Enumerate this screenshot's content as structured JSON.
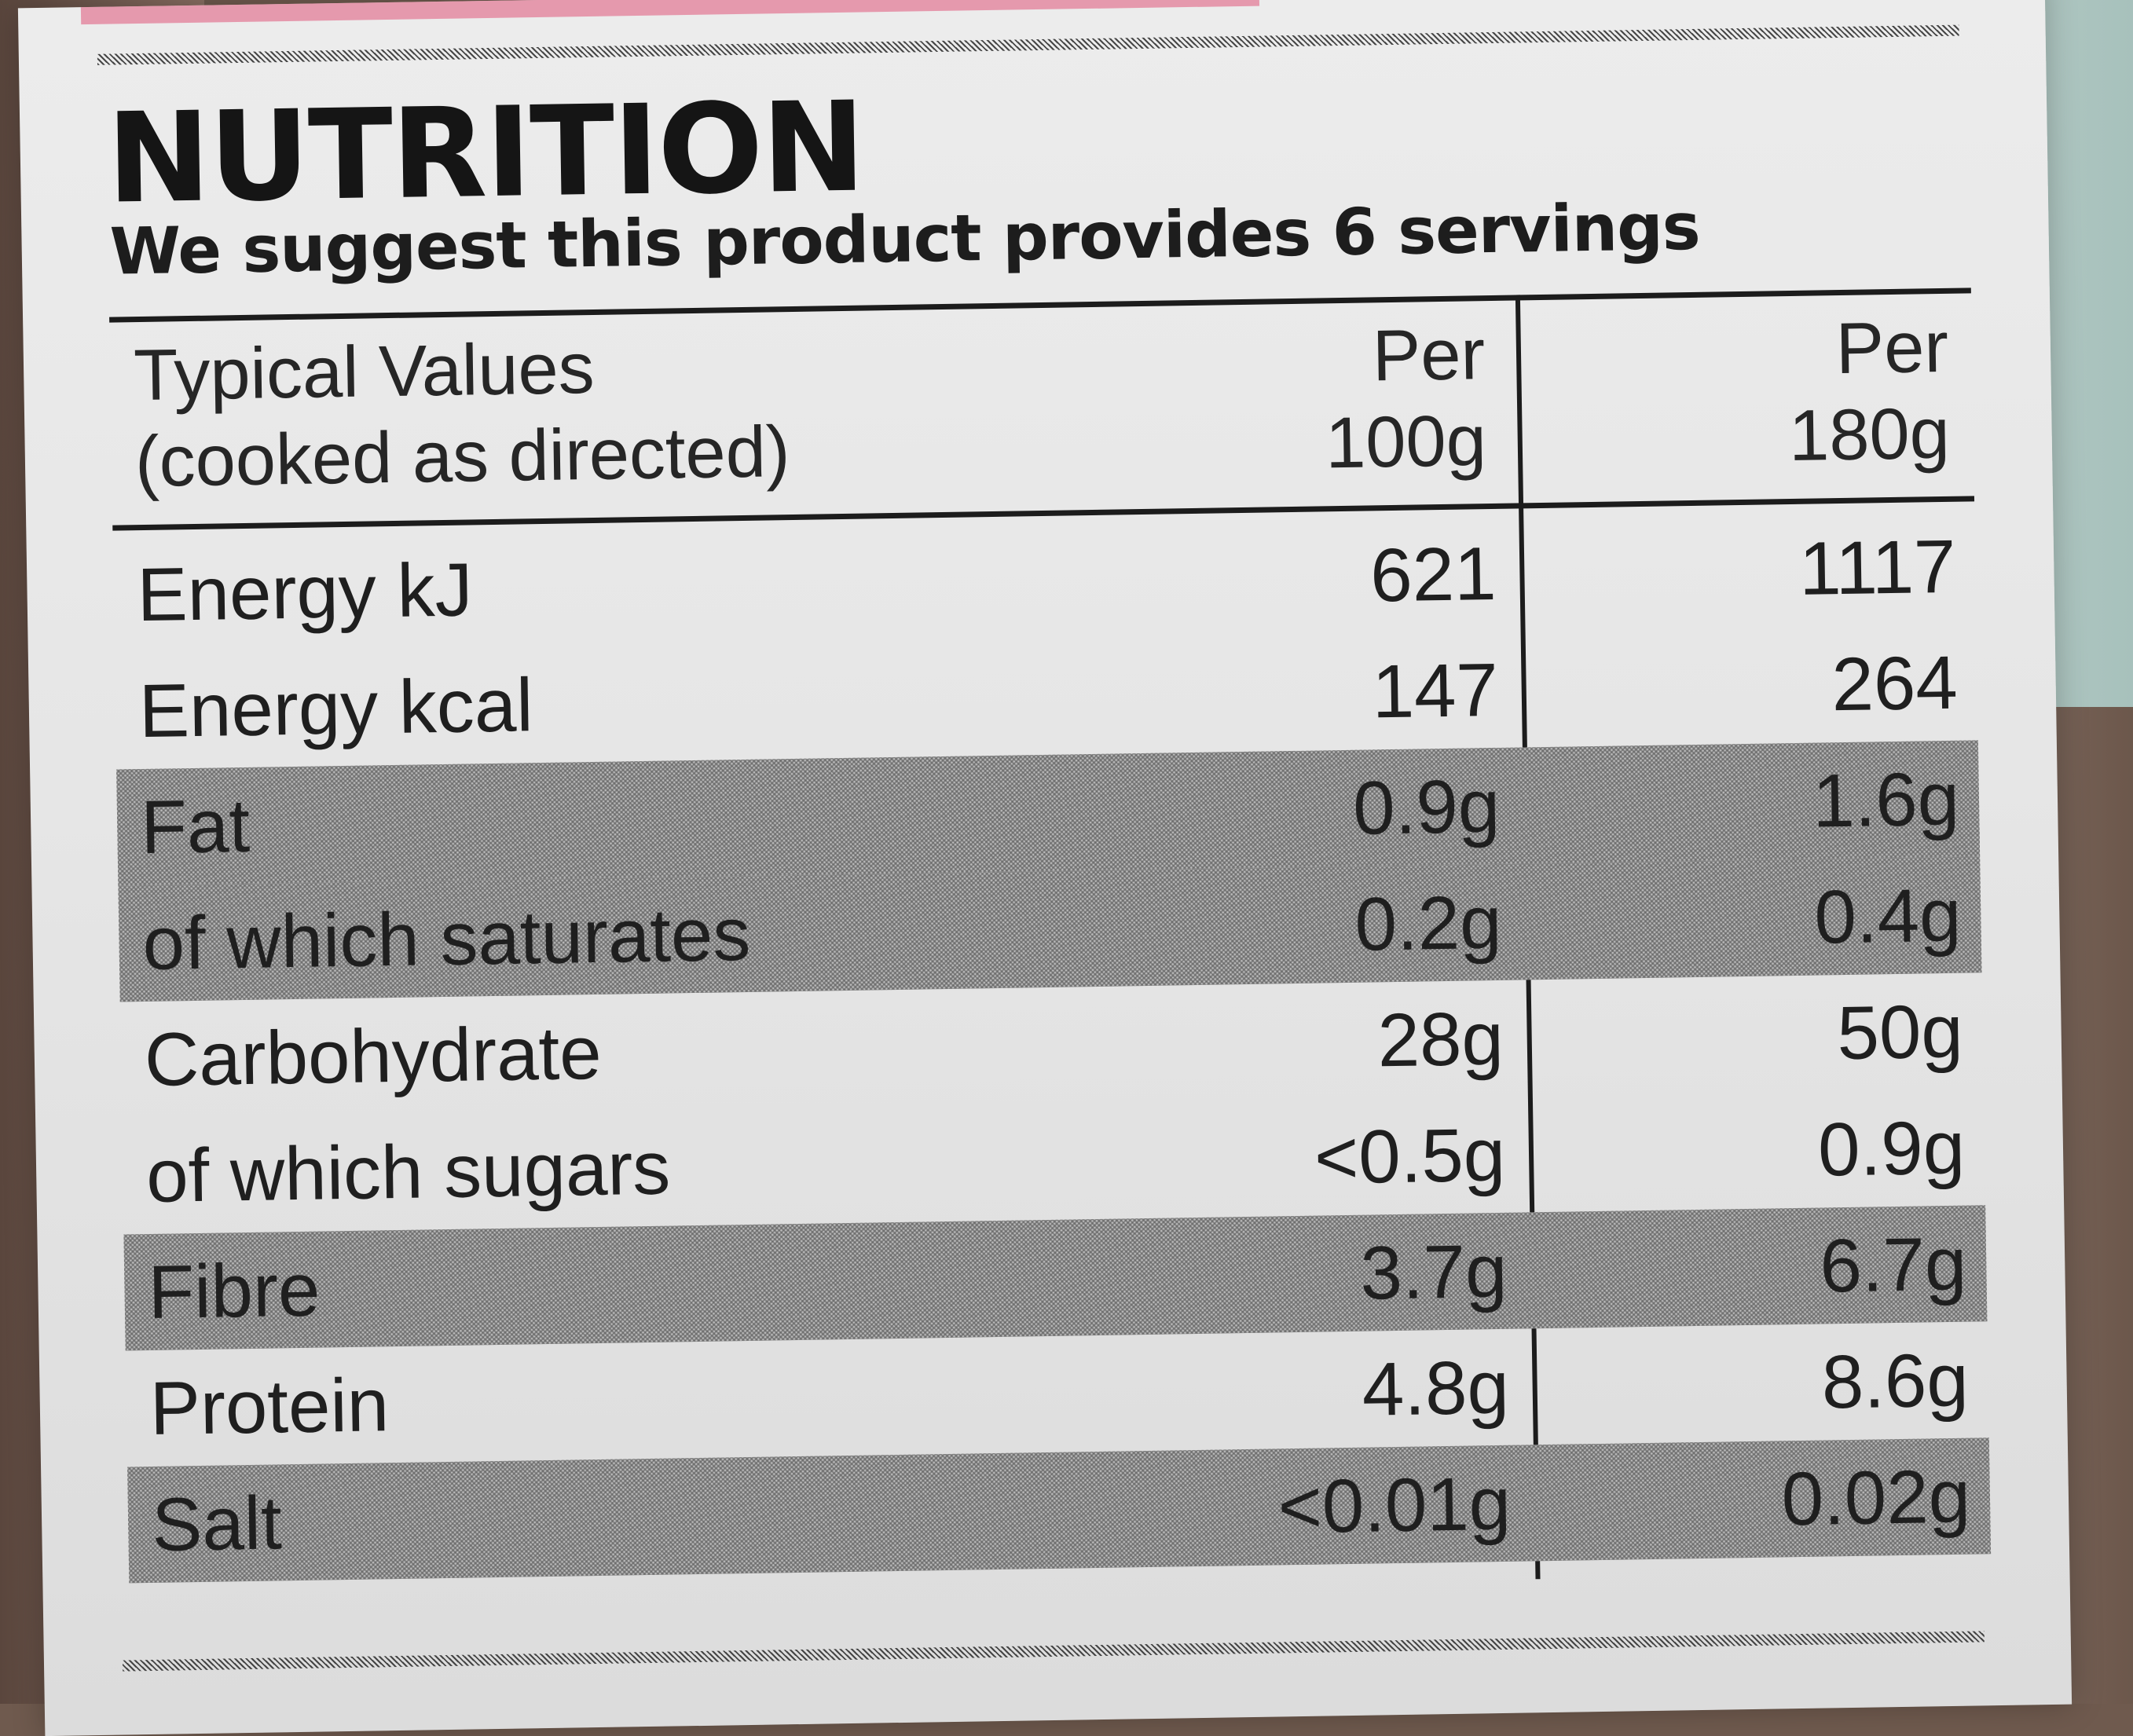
{
  "label": {
    "title": "NUTRITION",
    "subtitle": "We suggest this product provides 6 servings",
    "header": {
      "label_line1": "Typical Values",
      "label_line2": "(cooked as directed)",
      "col1_line1": "Per",
      "col1_line2": "100g",
      "col2_line1": "Per",
      "col2_line2": "180g"
    },
    "rows": [
      {
        "name": "Energy kJ",
        "per100": "621",
        "per180": "1117",
        "shaded": false
      },
      {
        "name": "Energy kcal",
        "per100": "147",
        "per180": "264",
        "shaded": false
      },
      {
        "name": "Fat",
        "per100": "0.9g",
        "per180": "1.6g",
        "shaded": true
      },
      {
        "name": "of which saturates",
        "per100": "0.2g",
        "per180": "0.4g",
        "shaded": true
      },
      {
        "name": "Carbohydrate",
        "per100": "28g",
        "per180": "50g",
        "shaded": false
      },
      {
        "name": "of which sugars",
        "per100": "<0.5g",
        "per180": "0.9g",
        "shaded": false
      },
      {
        "name": "Fibre",
        "per100": "3.7g",
        "per180": "6.7g",
        "shaded": true
      },
      {
        "name": "Protein",
        "per100": "4.8g",
        "per180": "8.6g",
        "shaded": false
      },
      {
        "name": "Salt",
        "per100": "<0.01g",
        "per180": "0.02g",
        "shaded": true
      }
    ]
  },
  "colors": {
    "label_background": "#e8e8e8",
    "ink": "#1f1f1f",
    "shading": "#b9b9b9",
    "accent_pink": "#e0567a"
  }
}
